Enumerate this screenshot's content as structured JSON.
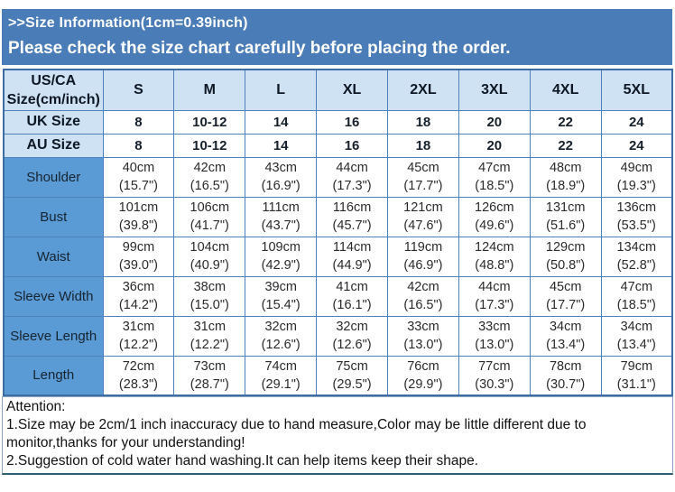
{
  "banner": {
    "line1": ">>Size Information(1cm=0.39inch)",
    "line2": "Please check the size chart carefully before placing the order."
  },
  "table": {
    "corner": [
      "US/CA",
      "Size(cm/inch)"
    ],
    "size_headers": [
      "S",
      "M",
      "L",
      "XL",
      "2XL",
      "3XL",
      "4XL",
      "5XL"
    ],
    "simple_rows": [
      {
        "label": "UK Size",
        "values": [
          "8",
          "10-12",
          "14",
          "16",
          "18",
          "20",
          "22",
          "24"
        ]
      },
      {
        "label": "AU Size",
        "values": [
          "8",
          "10-12",
          "14",
          "16",
          "18",
          "20",
          "22",
          "24"
        ]
      }
    ],
    "measure_rows": [
      {
        "label": "Shoulder",
        "cm": [
          "40cm",
          "42cm",
          "43cm",
          "44cm",
          "45cm",
          "47cm",
          "48cm",
          "49cm"
        ],
        "inch": [
          "(15.7\")",
          "(16.5\")",
          "(16.9\")",
          "(17.3\")",
          "(17.7\")",
          "(18.5\")",
          "(18.9\")",
          "(19.3\")"
        ]
      },
      {
        "label": "Bust",
        "cm": [
          "101cm",
          "106cm",
          "111cm",
          "116cm",
          "121cm",
          "126cm",
          "131cm",
          "136cm"
        ],
        "inch": [
          "(39.8\")",
          "(41.7\")",
          "(43.7\")",
          "(45.7\")",
          "(47.6\")",
          "(49.6\")",
          "(51.6\")",
          "(53.5\")"
        ]
      },
      {
        "label": "Waist",
        "cm": [
          "99cm",
          "104cm",
          "109cm",
          "114cm",
          "119cm",
          "124cm",
          "129cm",
          "134cm"
        ],
        "inch": [
          "(39.0\")",
          "(40.9\")",
          "(42.9\")",
          "(44.9\")",
          "(46.9\")",
          "(48.8\")",
          "(50.8\")",
          "(52.8\")"
        ]
      },
      {
        "label": "Sleeve Width",
        "cm": [
          "36cm",
          "38cm",
          "39cm",
          "41cm",
          "42cm",
          "44cm",
          "45cm",
          "47cm"
        ],
        "inch": [
          "(14.2\")",
          "(15.0\")",
          "(15.4\")",
          "(16.1\")",
          "(16.5\")",
          "(17.3\")",
          "(17.7\")",
          "(18.5\")"
        ]
      },
      {
        "label": "Sleeve Length",
        "cm": [
          "31cm",
          "31cm",
          "32cm",
          "32cm",
          "33cm",
          "33cm",
          "34cm",
          "34cm"
        ],
        "inch": [
          "(12.2\")",
          "(12.2\")",
          "(12.6\")",
          "(12.6\")",
          "(13.0\")",
          "(13.0\")",
          "(13.4\")",
          "(13.4\")"
        ]
      },
      {
        "label": "Length",
        "cm": [
          "72cm",
          "73cm",
          "74cm",
          "75cm",
          "76cm",
          "77cm",
          "78cm",
          "79cm"
        ],
        "inch": [
          "(28.3\")",
          "(28.7\")",
          "(29.1\")",
          "(29.5\")",
          "(29.9\")",
          "(30.3\")",
          "(30.7\")",
          "(31.1\")"
        ]
      }
    ]
  },
  "attention": {
    "title": "Attention:",
    "note1": "1.Size may be 2cm/1 inch inaccuracy due to hand measure,Color may be little different due to monitor,thanks for your understanding!",
    "note2": "2.Suggestion of cold water hand washing.It can help items keep their shape."
  },
  "colors": {
    "banner_bg": "#4a7cb8",
    "header_cell_bg": "#cfe2f3",
    "label_column_bg": "#5b9bd5",
    "table_border": "#4f81bd",
    "attention_bottom_border": "#2e5f6e"
  }
}
